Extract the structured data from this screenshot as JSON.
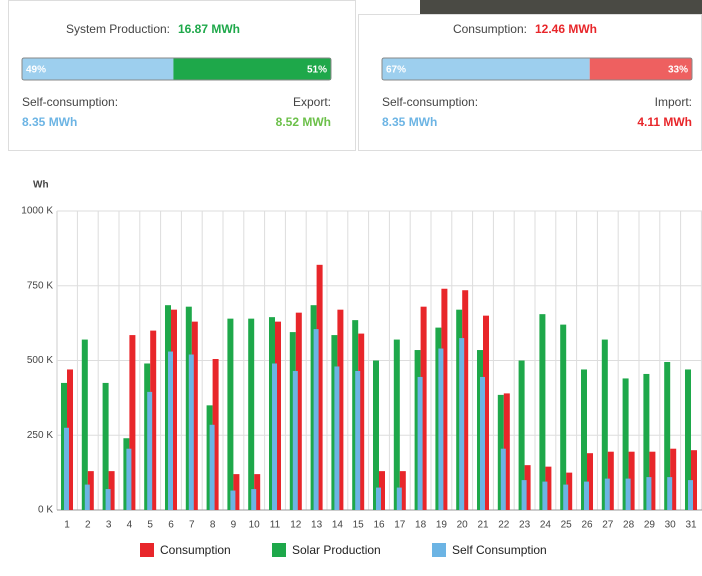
{
  "panels": [
    {
      "title": "System Production:",
      "total": "16.87 MWh",
      "total_color": "#1ea84a",
      "split": [
        {
          "value": 49,
          "label": "49%",
          "color": "#9dcfee"
        },
        {
          "value": 51,
          "label": "51%",
          "color": "#1ea84a"
        }
      ],
      "left_label": "Self-consumption:",
      "left_value": "8.35 MWh",
      "left_color": "#6cb4e4",
      "right_label": "Export:",
      "right_value": "8.52 MWh",
      "right_color": "#6cc04a"
    },
    {
      "title": "Consumption:",
      "total": "12.46 MWh",
      "total_color": "#e8262a",
      "split": [
        {
          "value": 67,
          "label": "67%",
          "color": "#9dcfee"
        },
        {
          "value": 33,
          "label": "33%",
          "color": "#ee6060"
        }
      ],
      "left_label": "Self-consumption:",
      "left_value": "8.35 MWh",
      "left_color": "#6cb4e4",
      "right_label": "Import:",
      "right_value": "4.11 MWh",
      "right_color": "#e8262a"
    }
  ],
  "chart_data": {
    "type": "bar",
    "y_label": "Wh",
    "categories": [
      "1",
      "2",
      "3",
      "4",
      "5",
      "6",
      "7",
      "8",
      "9",
      "10",
      "11",
      "12",
      "13",
      "14",
      "15",
      "16",
      "17",
      "18",
      "19",
      "20",
      "21",
      "22",
      "23",
      "24",
      "25",
      "26",
      "27",
      "28",
      "29",
      "30",
      "31"
    ],
    "series": [
      {
        "name": "Consumption",
        "color": "#e8262a",
        "values": [
          470000,
          130000,
          130000,
          585000,
          600000,
          670000,
          630000,
          505000,
          120000,
          120000,
          630000,
          660000,
          820000,
          670000,
          590000,
          130000,
          130000,
          680000,
          740000,
          735000,
          650000,
          390000,
          150000,
          145000,
          125000,
          190000,
          195000,
          195000,
          195000,
          205000,
          200000
        ]
      },
      {
        "name": "Solar Production",
        "color": "#1ea84a",
        "values": [
          425000,
          570000,
          425000,
          240000,
          490000,
          685000,
          680000,
          350000,
          640000,
          640000,
          645000,
          595000,
          685000,
          585000,
          635000,
          500000,
          570000,
          535000,
          610000,
          670000,
          535000,
          385000,
          500000,
          655000,
          620000,
          470000,
          570000,
          440000,
          455000,
          495000,
          470000
        ]
      },
      {
        "name": "Self Consumption",
        "color": "#6cb4e4",
        "values": [
          275000,
          85000,
          70000,
          205000,
          395000,
          530000,
          520000,
          285000,
          65000,
          70000,
          490000,
          465000,
          605000,
          480000,
          465000,
          75000,
          75000,
          445000,
          540000,
          575000,
          445000,
          205000,
          100000,
          95000,
          85000,
          95000,
          105000,
          105000,
          110000,
          110000,
          100000
        ]
      }
    ],
    "ylim": [
      0,
      1000000
    ],
    "yticks": [
      {
        "value": 0,
        "label": "0 K"
      },
      {
        "value": 250000,
        "label": "250 K"
      },
      {
        "value": 500000,
        "label": "500 K"
      },
      {
        "value": 750000,
        "label": "750 K"
      },
      {
        "value": 1000000,
        "label": "1000 K"
      }
    ],
    "grid": true
  }
}
